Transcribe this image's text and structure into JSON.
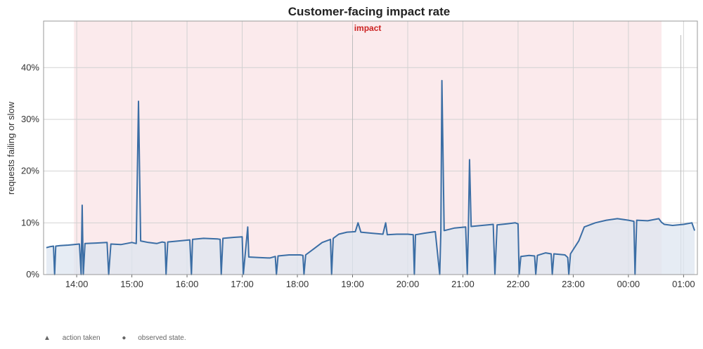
{
  "chart_data": {
    "type": "area",
    "title": "Customer-facing impact rate",
    "ylabel": "requests failing or slow",
    "xlabel": "",
    "x_range_hours": [
      13.4,
      25.25
    ],
    "ylim": [
      0,
      0.49
    ],
    "y_ticks": [
      0,
      0.1,
      0.2,
      0.3,
      0.4
    ],
    "y_tick_labels": [
      "0%",
      "10%",
      "20%",
      "30%",
      "40%"
    ],
    "x_ticks": [
      14,
      15,
      16,
      17,
      18,
      19,
      20,
      21,
      22,
      23,
      24,
      25
    ],
    "x_tick_labels": [
      "14:00",
      "15:00",
      "16:00",
      "17:00",
      "18:00",
      "19:00",
      "20:00",
      "21:00",
      "22:00",
      "23:00",
      "00:00",
      "01:00"
    ],
    "grid": true,
    "impact_window": {
      "label": "impact",
      "start": 13.95,
      "end": 24.6,
      "color": "#fbeaec",
      "label_color": "#cc2222"
    },
    "marker_lines": [
      19.0,
      24.95
    ],
    "series": [
      {
        "color": "#3b6ea5",
        "fill": "#dde6f0",
        "points": [
          [
            13.45,
            0.052
          ],
          [
            13.52,
            0.054
          ],
          [
            13.58,
            0.055
          ],
          [
            13.6,
            0.0
          ],
          [
            13.62,
            0.055
          ],
          [
            13.7,
            0.056
          ],
          [
            13.85,
            0.057
          ],
          [
            13.95,
            0.058
          ],
          [
            14.05,
            0.059
          ],
          [
            14.08,
            0.0
          ],
          [
            14.1,
            0.134
          ],
          [
            14.12,
            0.0
          ],
          [
            14.15,
            0.06
          ],
          [
            14.35,
            0.061
          ],
          [
            14.55,
            0.062
          ],
          [
            14.58,
            0.0
          ],
          [
            14.62,
            0.059
          ],
          [
            14.8,
            0.058
          ],
          [
            15.0,
            0.062
          ],
          [
            15.08,
            0.06
          ],
          [
            15.12,
            0.335
          ],
          [
            15.16,
            0.065
          ],
          [
            15.3,
            0.062
          ],
          [
            15.45,
            0.06
          ],
          [
            15.55,
            0.063
          ],
          [
            15.6,
            0.062
          ],
          [
            15.62,
            0.0
          ],
          [
            15.65,
            0.063
          ],
          [
            15.85,
            0.065
          ],
          [
            16.05,
            0.067
          ],
          [
            16.08,
            0.0
          ],
          [
            16.1,
            0.068
          ],
          [
            16.3,
            0.07
          ],
          [
            16.55,
            0.069
          ],
          [
            16.6,
            0.068
          ],
          [
            16.62,
            0.0
          ],
          [
            16.65,
            0.07
          ],
          [
            16.85,
            0.072
          ],
          [
            17.0,
            0.073
          ],
          [
            17.02,
            0.0
          ],
          [
            17.05,
            0.035
          ],
          [
            17.1,
            0.092
          ],
          [
            17.12,
            0.034
          ],
          [
            17.3,
            0.033
          ],
          [
            17.5,
            0.032
          ],
          [
            17.6,
            0.035
          ],
          [
            17.62,
            0.0
          ],
          [
            17.65,
            0.036
          ],
          [
            17.85,
            0.038
          ],
          [
            18.05,
            0.038
          ],
          [
            18.1,
            0.037
          ],
          [
            18.12,
            0.0
          ],
          [
            18.15,
            0.038
          ],
          [
            18.3,
            0.05
          ],
          [
            18.45,
            0.062
          ],
          [
            18.6,
            0.068
          ],
          [
            18.62,
            0.0
          ],
          [
            18.65,
            0.07
          ],
          [
            18.75,
            0.078
          ],
          [
            18.9,
            0.082
          ],
          [
            19.05,
            0.083
          ],
          [
            19.1,
            0.1
          ],
          [
            19.15,
            0.082
          ],
          [
            19.35,
            0.08
          ],
          [
            19.55,
            0.078
          ],
          [
            19.6,
            0.1
          ],
          [
            19.63,
            0.077
          ],
          [
            19.8,
            0.078
          ],
          [
            20.0,
            0.078
          ],
          [
            20.1,
            0.077
          ],
          [
            20.12,
            0.0
          ],
          [
            20.14,
            0.077
          ],
          [
            20.3,
            0.08
          ],
          [
            20.5,
            0.083
          ],
          [
            20.58,
            0.0
          ],
          [
            20.6,
            0.083
          ],
          [
            20.62,
            0.375
          ],
          [
            20.66,
            0.085
          ],
          [
            20.85,
            0.09
          ],
          [
            21.05,
            0.092
          ],
          [
            21.08,
            0.0
          ],
          [
            21.1,
            0.093
          ],
          [
            21.12,
            0.222
          ],
          [
            21.15,
            0.093
          ],
          [
            21.35,
            0.095
          ],
          [
            21.55,
            0.097
          ],
          [
            21.58,
            0.0
          ],
          [
            21.62,
            0.096
          ],
          [
            21.8,
            0.098
          ],
          [
            21.95,
            0.1
          ],
          [
            22.0,
            0.098
          ],
          [
            22.02,
            0.0
          ],
          [
            22.05,
            0.035
          ],
          [
            22.2,
            0.037
          ],
          [
            22.3,
            0.036
          ],
          [
            22.32,
            0.0
          ],
          [
            22.35,
            0.037
          ],
          [
            22.5,
            0.042
          ],
          [
            22.6,
            0.04
          ],
          [
            22.62,
            0.0
          ],
          [
            22.65,
            0.04
          ],
          [
            22.85,
            0.038
          ],
          [
            22.9,
            0.033
          ],
          [
            22.92,
            0.0
          ],
          [
            22.95,
            0.04
          ],
          [
            23.1,
            0.065
          ],
          [
            23.2,
            0.092
          ],
          [
            23.4,
            0.1
          ],
          [
            23.6,
            0.105
          ],
          [
            23.8,
            0.108
          ],
          [
            24.0,
            0.105
          ],
          [
            24.1,
            0.103
          ],
          [
            24.12,
            0.0
          ],
          [
            24.15,
            0.105
          ],
          [
            24.35,
            0.104
          ],
          [
            24.55,
            0.108
          ],
          [
            24.6,
            0.101
          ],
          [
            24.65,
            0.097
          ],
          [
            24.8,
            0.095
          ],
          [
            25.0,
            0.097
          ],
          [
            25.15,
            0.1
          ],
          [
            25.2,
            0.085
          ]
        ]
      }
    ]
  },
  "legend": {
    "action_taken_symbol": "▲",
    "action_taken": "action taken",
    "observed_state_symbol": "●",
    "observed_state": "observed state."
  }
}
